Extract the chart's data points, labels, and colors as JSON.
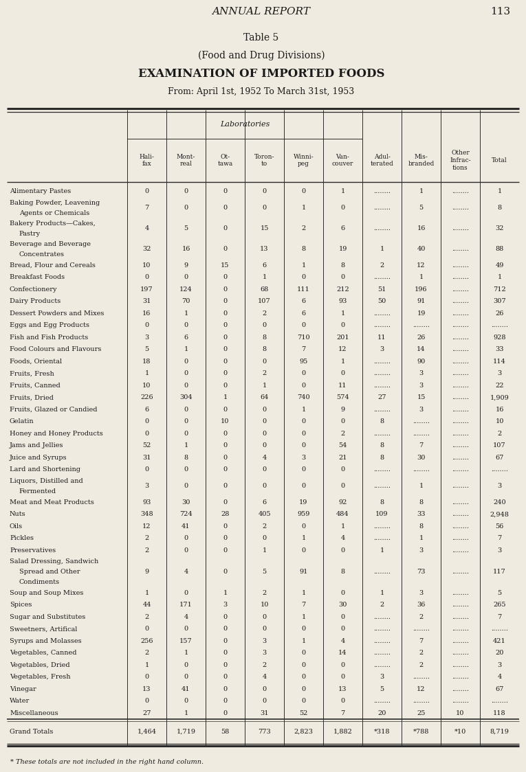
{
  "page_header": "ANNUAL REPORT",
  "page_number": "113",
  "title1": "Table 5",
  "title2": "(Food and Drug Divisions)",
  "title3": "EXAMINATION OF IMPORTED FOODS",
  "title4": "From: April 1st, 1952 To March 31st, 1953",
  "col_headers_lab": "Laboratories",
  "col_headers": [
    "Hali-\nfax",
    "Mont-\nreal",
    "Ot-\ntawa",
    "Toron-\nto",
    "Winni-\npeg",
    "Van-\ncouver",
    "Adul-\nterated",
    "Mis-\nbranded",
    "Other\nInfrac-\ntions",
    "Total"
  ],
  "footnote": "* These totals are not included in the right hand column.",
  "rows": [
    [
      "Alimentary Pastes",
      "0",
      "0",
      "0",
      "0",
      "0",
      "1",
      "........",
      "1",
      "........",
      "1"
    ],
    [
      "Baking Powder, Leavening\n  Agents or Chemicals",
      "7",
      "0",
      "0",
      "0",
      "1",
      "0",
      "........",
      "5",
      "........",
      "8"
    ],
    [
      "Bakery Products—Cakes,\n  Pastry",
      "4",
      "5",
      "0",
      "15",
      "2",
      "6",
      "........",
      "16",
      "........",
      "32"
    ],
    [
      "Beverage and Beverage\n  Concentrates",
      "32",
      "16",
      "0",
      "13",
      "8",
      "19",
      "1",
      "40",
      "........",
      "88"
    ],
    [
      "Bread, Flour and Cereals",
      "10",
      "9",
      "15",
      "6",
      "1",
      "8",
      "2",
      "12",
      "........",
      "49"
    ],
    [
      "Breakfast Foods",
      "0",
      "0",
      "0",
      "1",
      "0",
      "0",
      "........",
      "1",
      "........",
      "1"
    ],
    [
      "Confectionery",
      "197",
      "124",
      "0",
      "68",
      "111",
      "212",
      "51",
      "196",
      "........",
      "712"
    ],
    [
      "Dairy Products",
      "31",
      "70",
      "0",
      "107",
      "6",
      "93",
      "50",
      "91",
      "........",
      "307"
    ],
    [
      "Dessert Powders and Mixes",
      "16",
      "1",
      "0",
      "2",
      "6",
      "1",
      "........",
      "19",
      "........",
      "26"
    ],
    [
      "Eggs and Egg Products",
      "0",
      "0",
      "0",
      "0",
      "0",
      "0",
      "........",
      "........",
      "........",
      "........"
    ],
    [
      "Fish and Fish Products",
      "3",
      "6",
      "0",
      "8",
      "710",
      "201",
      "11",
      "26",
      "........",
      "928"
    ],
    [
      "Food Colours and Flavours",
      "5",
      "1",
      "0",
      "8",
      "7",
      "12",
      "3",
      "14",
      "........",
      "33"
    ],
    [
      "Foods, Oriental",
      "18",
      "0",
      "0",
      "0",
      "95",
      "1",
      "........",
      "90",
      "........",
      "114"
    ],
    [
      "Fruits, Fresh",
      "1",
      "0",
      "0",
      "2",
      "0",
      "0",
      "........",
      "3",
      "........",
      "3"
    ],
    [
      "Fruits, Canned",
      "10",
      "0",
      "0",
      "1",
      "0",
      "11",
      "........",
      "3",
      "........",
      "22"
    ],
    [
      "Fruits, Dried",
      "226",
      "304",
      "1",
      "64",
      "740",
      "574",
      "27",
      "15",
      "........",
      "1,909"
    ],
    [
      "Fruits, Glazed or Candied",
      "6",
      "0",
      "0",
      "0",
      "1",
      "9",
      "........",
      "3",
      "........",
      "16"
    ],
    [
      "Gelatin",
      "0",
      "0",
      "10",
      "0",
      "0",
      "0",
      "8",
      "........",
      "........",
      "10"
    ],
    [
      "Honey and Honey Products",
      "0",
      "0",
      "0",
      "0",
      "0",
      "2",
      "........",
      "........",
      "........",
      "2"
    ],
    [
      "Jams and Jellies",
      "52",
      "1",
      "0",
      "0",
      "0",
      "54",
      "8",
      "7",
      "........",
      "107"
    ],
    [
      "Juice and Syrups",
      "31",
      "8",
      "0",
      "4",
      "3",
      "21",
      "8",
      "30",
      "........",
      "67"
    ],
    [
      "Lard and Shortening",
      "0",
      "0",
      "0",
      "0",
      "0",
      "0",
      "........",
      "........",
      "........",
      "........"
    ],
    [
      "Liquors, Distilled and\n  Fermented",
      "3",
      "0",
      "0",
      "0",
      "0",
      "0",
      "........",
      "1",
      "........",
      "3"
    ],
    [
      "Meat and Meat Products",
      "93",
      "30",
      "0",
      "6",
      "19",
      "92",
      "8",
      "8",
      "........",
      "240"
    ],
    [
      "Nuts",
      "348",
      "724",
      "28",
      "405",
      "959",
      "484",
      "109",
      "33",
      "........",
      "2,948"
    ],
    [
      "Oils",
      "12",
      "41",
      "0",
      "2",
      "0",
      "1",
      "........",
      "8",
      "........",
      "56"
    ],
    [
      "Pickles",
      "2",
      "0",
      "0",
      "0",
      "1",
      "4",
      "........",
      "1",
      "........",
      "7"
    ],
    [
      "Preservatives",
      "2",
      "0",
      "0",
      "1",
      "0",
      "0",
      "1",
      "3",
      "........",
      "3"
    ],
    [
      "Salad Dressing, Sandwich\n  Spread and Other\n  Condiments",
      "9",
      "4",
      "0",
      "5",
      "91",
      "8",
      "........",
      "73",
      "........",
      "117"
    ],
    [
      "Soup and Soup Mixes",
      "1",
      "0",
      "1",
      "2",
      "1",
      "0",
      "1",
      "3",
      "........",
      "5"
    ],
    [
      "Spices",
      "44",
      "171",
      "3",
      "10",
      "7",
      "30",
      "2",
      "36",
      "........",
      "265"
    ],
    [
      "Sugar and Substitutes",
      "2",
      "4",
      "0",
      "0",
      "1",
      "0",
      "........",
      "2",
      "........",
      "7"
    ],
    [
      "Sweetners, Artifical",
      "0",
      "0",
      "0",
      "0",
      "0",
      "0",
      "........",
      "........",
      "........",
      "........"
    ],
    [
      "Syrups and Molasses",
      "256",
      "157",
      "0",
      "3",
      "1",
      "4",
      "........",
      "7",
      "........",
      "421"
    ],
    [
      "Vegetables, Canned",
      "2",
      "1",
      "0",
      "3",
      "0",
      "14",
      "........",
      "2",
      "........",
      "20"
    ],
    [
      "Vegetables, Dried",
      "1",
      "0",
      "0",
      "2",
      "0",
      "0",
      "........",
      "2",
      "........",
      "3"
    ],
    [
      "Vegetables, Fresh",
      "0",
      "0",
      "0",
      "4",
      "0",
      "0",
      "3",
      "........",
      "........",
      "4"
    ],
    [
      "Vinegar",
      "13",
      "41",
      "0",
      "0",
      "0",
      "13",
      "5",
      "12",
      "........",
      "67"
    ],
    [
      "Water",
      "0",
      "0",
      "0",
      "0",
      "0",
      "0",
      "........",
      "........",
      "........",
      "........"
    ],
    [
      "Miscellaneous",
      "27",
      "1",
      "0",
      "31",
      "52",
      "7",
      "20",
      "25",
      "10",
      "118"
    ]
  ],
  "grand_totals": [
    "Grand Totals",
    "1,464",
    "1,719",
    "58",
    "773",
    "2,823",
    "1,882",
    "*318",
    "*788",
    "*10",
    "8,719"
  ],
  "bg_color": "#f0ebe0",
  "text_color": "#1a1a1a",
  "line_color": "#333333"
}
